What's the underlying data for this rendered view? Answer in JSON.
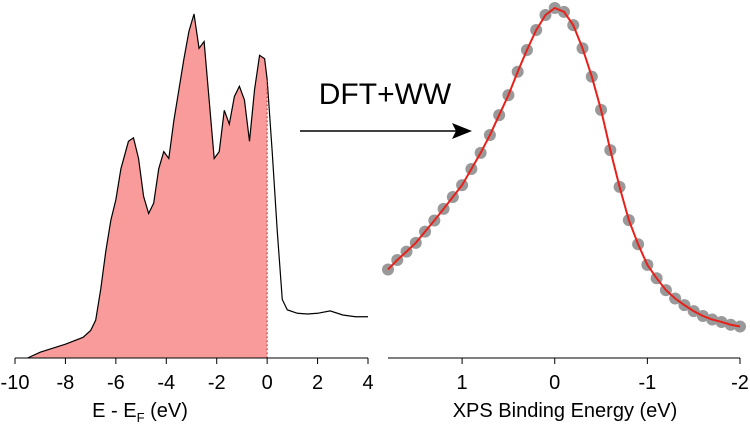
{
  "annotation": "DFT+WW",
  "chart_data": [
    {
      "type": "area",
      "xlabel": {
        "main": "E - E",
        "subscript": "F",
        "unit": " (eV)"
      },
      "x": [
        -9.5,
        -9,
        -8,
        -7.3,
        -7,
        -6.8,
        -6.6,
        -6.4,
        -6.2,
        -6.0,
        -5.8,
        -5.5,
        -5.3,
        -5.1,
        -4.9,
        -4.7,
        -4.5,
        -4.3,
        -4.1,
        -3.9,
        -3.7,
        -3.5,
        -3.3,
        -3.1,
        -2.9,
        -2.7,
        -2.5,
        -2.3,
        -2.1,
        -1.9,
        -1.7,
        -1.5,
        -1.3,
        -1.1,
        -0.9,
        -0.7,
        -0.5,
        -0.3,
        -0.1,
        0,
        0.2,
        0.4,
        0.6,
        0.8,
        1.2,
        1.6,
        2,
        2.5,
        3,
        3.5,
        4
      ],
      "values": [
        0,
        1.7,
        4,
        6,
        8,
        11,
        20,
        31,
        40,
        46,
        55,
        63,
        64,
        58,
        47,
        42,
        45,
        55,
        60,
        58,
        69,
        78,
        87,
        95,
        100,
        90,
        92,
        75,
        58,
        60,
        72,
        68,
        76,
        79,
        75,
        63,
        78,
        88,
        87,
        81,
        60,
        37,
        17,
        14,
        13,
        12.8,
        13,
        13.7,
        12.5,
        12,
        12
      ],
      "color": "#f99b9b",
      "line_color": "#000000",
      "fermi_level": 0,
      "xlim": [
        -10,
        4
      ],
      "xticks": [
        -10,
        -8,
        -6,
        -4,
        -2,
        0,
        2,
        4
      ]
    },
    {
      "type": "fit",
      "xlabel": "XPS Binding Energy (eV)",
      "x": [
        1.8,
        1.7,
        1.6,
        1.5,
        1.4,
        1.3,
        1.2,
        1.1,
        1.0,
        0.9,
        0.8,
        0.7,
        0.6,
        0.5,
        0.4,
        0.3,
        0.2,
        0.1,
        0.0,
        -0.1,
        -0.2,
        -0.3,
        -0.4,
        -0.5,
        -0.6,
        -0.7,
        -0.8,
        -0.9,
        -1.0,
        -1.1,
        -1.2,
        -1.3,
        -1.4,
        -1.5,
        -1.6,
        -1.7,
        -1.8,
        -1.9,
        -2.0
      ],
      "series": [
        {
          "style": "markers",
          "color": "#999999",
          "values": [
            25.3,
            28,
            30.4,
            32.9,
            36.1,
            39.3,
            42.6,
            46,
            49.4,
            54,
            58.6,
            63.7,
            69.4,
            75.1,
            81.8,
            88,
            93.7,
            98,
            100,
            98.9,
            95.1,
            88.5,
            80.4,
            70.9,
            59.4,
            48.9,
            39.4,
            32.5,
            26.6,
            22.8,
            19.4,
            17,
            15.1,
            13.4,
            12,
            11,
            10.3,
            9.5,
            9
          ]
        },
        {
          "style": "line",
          "color": "#e8201a",
          "values": [
            25.3,
            28,
            30.4,
            32.9,
            36.1,
            39.3,
            42.6,
            46,
            49.4,
            54,
            58.6,
            63.7,
            69.4,
            75.1,
            81.8,
            88,
            93.7,
            98,
            100,
            98.9,
            95.1,
            88.5,
            80.4,
            70.9,
            59.4,
            48.9,
            39.4,
            32.5,
            26.6,
            22.8,
            19.4,
            17,
            15.1,
            13.4,
            12,
            11,
            10.3,
            9.5,
            9
          ]
        }
      ],
      "xlim": [
        1.8,
        -2
      ],
      "xticks": [
        1,
        0,
        -1,
        -2
      ]
    }
  ]
}
